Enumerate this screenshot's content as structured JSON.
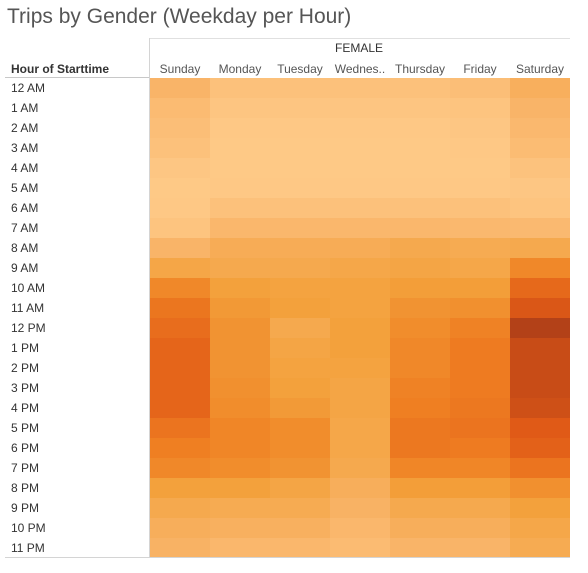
{
  "chart_data": {
    "type": "heatmap",
    "title": "Trips by Gender (Weekday per Hour)",
    "group": "FEMALE",
    "row_header": "Hour of Starttime",
    "columns": [
      "Sunday",
      "Monday",
      "Tuesday",
      "Wednes..",
      "Thursday",
      "Friday",
      "Saturday"
    ],
    "rows": [
      "12 AM",
      "1 AM",
      "2 AM",
      "3 AM",
      "4 AM",
      "5 AM",
      "6 AM",
      "7 AM",
      "8 AM",
      "9 AM",
      "10 AM",
      "11 AM",
      "12 PM",
      "1 PM",
      "2 PM",
      "3 PM",
      "4 PM",
      "5 PM",
      "6 PM",
      "7 PM",
      "8 PM",
      "9 PM",
      "10 PM",
      "11 PM"
    ],
    "values": [
      [
        0.2,
        0.1,
        0.1,
        0.1,
        0.1,
        0.12,
        0.25
      ],
      [
        0.15,
        0.07,
        0.07,
        0.07,
        0.07,
        0.08,
        0.2
      ],
      [
        0.12,
        0.05,
        0.05,
        0.05,
        0.05,
        0.06,
        0.17
      ],
      [
        0.1,
        0.04,
        0.04,
        0.04,
        0.04,
        0.05,
        0.14
      ],
      [
        0.06,
        0.04,
        0.04,
        0.04,
        0.04,
        0.04,
        0.09
      ],
      [
        0.04,
        0.05,
        0.05,
        0.05,
        0.05,
        0.05,
        0.06
      ],
      [
        0.05,
        0.1,
        0.1,
        0.1,
        0.1,
        0.1,
        0.08
      ],
      [
        0.08,
        0.18,
        0.18,
        0.18,
        0.18,
        0.17,
        0.16
      ],
      [
        0.2,
        0.28,
        0.28,
        0.28,
        0.32,
        0.3,
        0.32
      ],
      [
        0.35,
        0.32,
        0.32,
        0.34,
        0.36,
        0.34,
        0.55
      ],
      [
        0.55,
        0.4,
        0.38,
        0.38,
        0.42,
        0.42,
        0.72
      ],
      [
        0.65,
        0.45,
        0.4,
        0.38,
        0.48,
        0.5,
        0.82
      ],
      [
        0.7,
        0.48,
        0.32,
        0.4,
        0.52,
        0.58,
        0.95
      ],
      [
        0.74,
        0.48,
        0.36,
        0.4,
        0.55,
        0.62,
        0.88
      ],
      [
        0.74,
        0.48,
        0.38,
        0.38,
        0.55,
        0.62,
        0.88
      ],
      [
        0.74,
        0.5,
        0.4,
        0.36,
        0.58,
        0.62,
        0.88
      ],
      [
        0.74,
        0.52,
        0.44,
        0.36,
        0.6,
        0.64,
        0.86
      ],
      [
        0.66,
        0.56,
        0.52,
        0.34,
        0.64,
        0.66,
        0.8
      ],
      [
        0.6,
        0.56,
        0.52,
        0.34,
        0.64,
        0.62,
        0.76
      ],
      [
        0.55,
        0.52,
        0.48,
        0.32,
        0.56,
        0.56,
        0.66
      ],
      [
        0.4,
        0.4,
        0.36,
        0.26,
        0.42,
        0.42,
        0.5
      ],
      [
        0.32,
        0.3,
        0.3,
        0.22,
        0.32,
        0.32,
        0.4
      ],
      [
        0.26,
        0.24,
        0.24,
        0.18,
        0.26,
        0.26,
        0.34
      ],
      [
        0.22,
        0.18,
        0.18,
        0.15,
        0.2,
        0.2,
        0.3
      ]
    ],
    "color_scale": [
      "#ffce8e",
      "#f9b468",
      "#f3a13c",
      "#ef7f22",
      "#e05a17",
      "#a43818"
    ]
  }
}
